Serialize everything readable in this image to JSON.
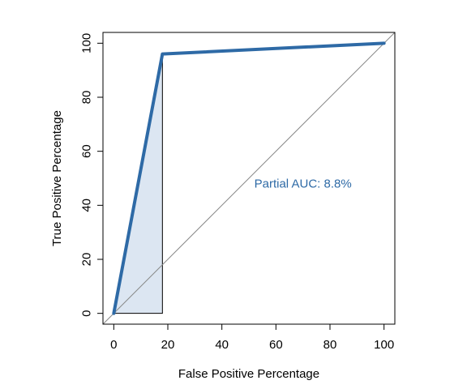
{
  "chart_data": {
    "type": "line",
    "title": "",
    "xlabel": "False Positive Percentage",
    "ylabel": "True Positive Percentage",
    "xlim": [
      -4,
      104
    ],
    "ylim": [
      -4,
      104
    ],
    "x_ticks": [
      0,
      20,
      40,
      60,
      80,
      100
    ],
    "y_ticks": [
      0,
      20,
      40,
      60,
      80,
      100
    ],
    "x_tick_labels": [
      "0",
      "20",
      "40",
      "60",
      "80",
      "100"
    ],
    "y_tick_labels": [
      "0",
      "20",
      "40",
      "60",
      "80",
      "100"
    ],
    "grid": false,
    "legend": "none",
    "series": [
      {
        "x": [
          0,
          18,
          100
        ],
        "y": [
          0,
          96,
          100
        ],
        "color": "#2e6aa6"
      }
    ],
    "reference_line": {
      "x": [
        -4,
        104
      ],
      "y": [
        -4,
        104
      ],
      "color": "#888888"
    },
    "partial_auc_region": {
      "x_range": [
        0,
        18
      ],
      "fill": "#dce6f2",
      "label": "Partial AUC: 8.8%",
      "label_at": {
        "x": 70,
        "y": 48
      },
      "label_color": "#2e6aa6"
    }
  }
}
